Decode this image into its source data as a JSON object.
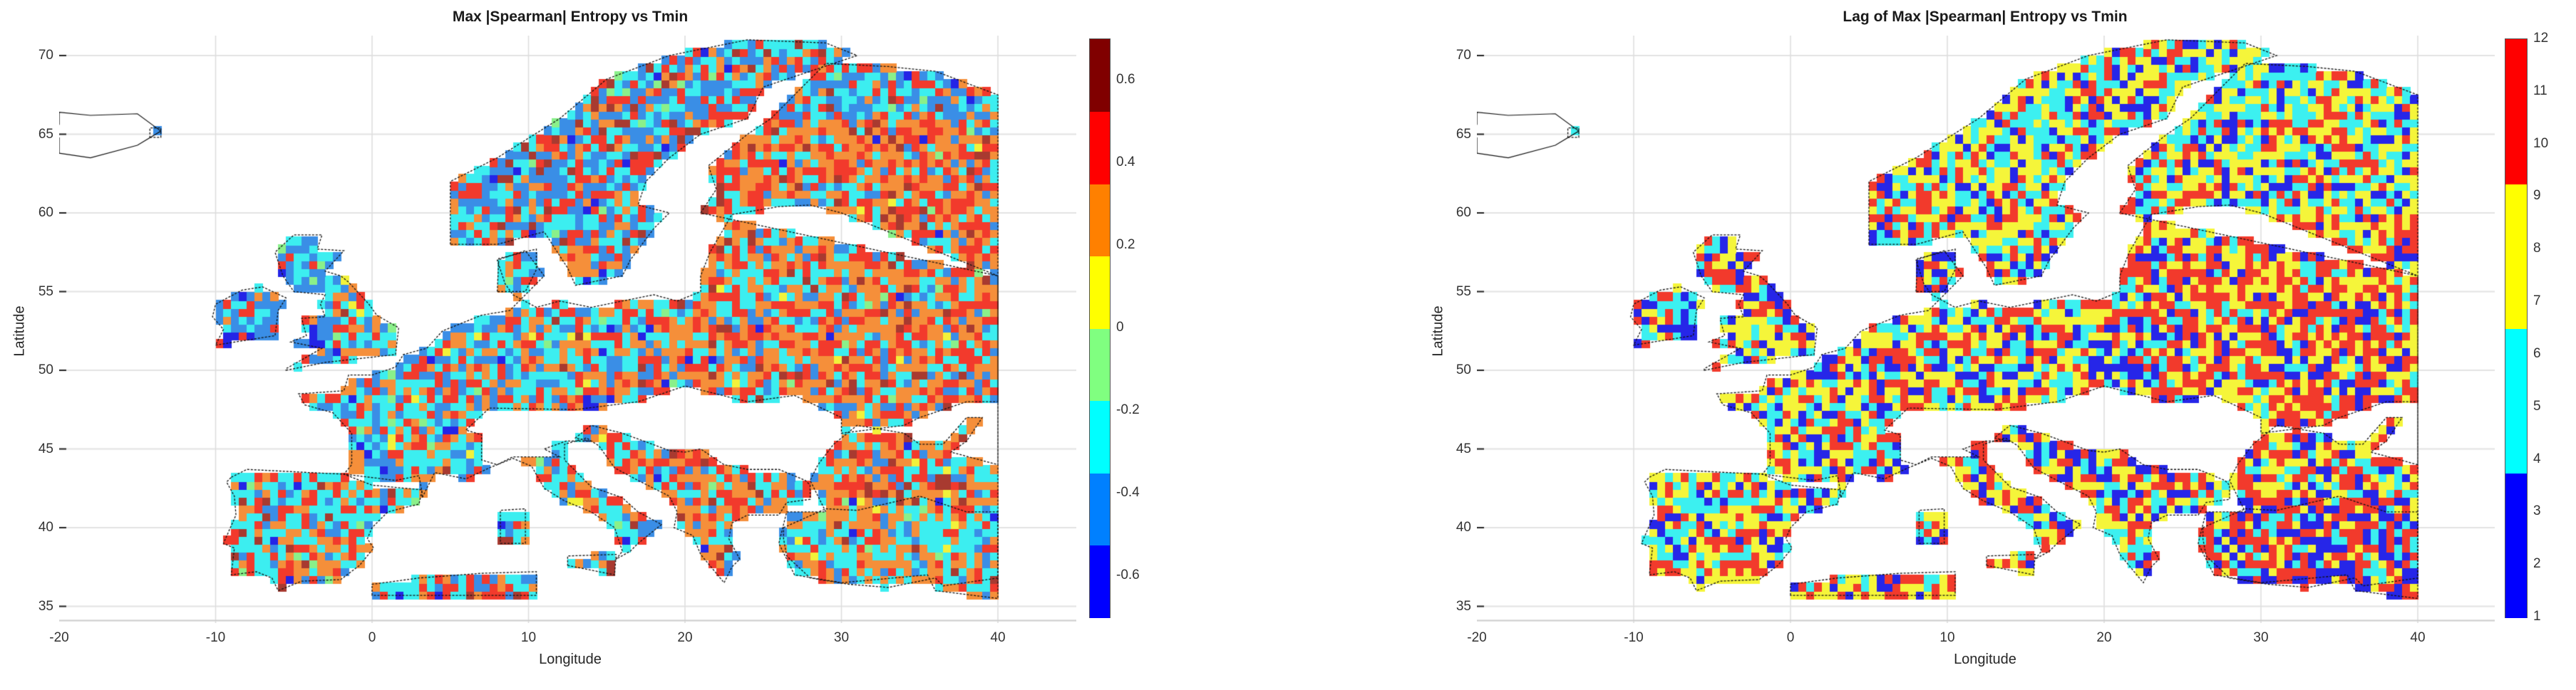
{
  "chart_data": [
    {
      "type": "heatmap",
      "title": "Max |Spearman| Entropy vs Tmin",
      "xlabel": "Longitude",
      "ylabel": "Latitude",
      "xlim": [
        -20,
        45
      ],
      "ylim": [
        34,
        71
      ],
      "xticks": [
        -20,
        -10,
        0,
        10,
        20,
        30,
        40
      ],
      "yticks": [
        35,
        40,
        45,
        50,
        55,
        60,
        65,
        70
      ],
      "grid": true,
      "cell_size_deg": 0.5,
      "colorbar": {
        "position": "right",
        "range": [
          -0.7,
          0.7
        ],
        "ticks": [
          -0.6,
          -0.4,
          -0.2,
          0,
          0.2,
          0.4,
          0.6
        ],
        "bins": [
          {
            "from": -0.7,
            "to": -0.525,
            "color": "#0000ff"
          },
          {
            "from": -0.525,
            "to": -0.35,
            "color": "#0080ff"
          },
          {
            "from": -0.35,
            "to": -0.175,
            "color": "#00ffff"
          },
          {
            "from": -0.175,
            "to": 0.0,
            "color": "#80ff80"
          },
          {
            "from": 0.0,
            "to": 0.175,
            "color": "#ffff00"
          },
          {
            "from": 0.175,
            "to": 0.35,
            "color": "#ff8000"
          },
          {
            "from": 0.35,
            "to": 0.525,
            "color": "#ff0000"
          },
          {
            "from": 0.525,
            "to": 0.7,
            "color": "#800000"
          }
        ]
      },
      "rendered_colors": [
        "#2424e6",
        "#3a8ee6",
        "#3ceef0",
        "#8af08a",
        "#f2f23a",
        "#f58f3a",
        "#f23a2c",
        "#a83a30"
      ],
      "regional_patterns": [
        {
          "region": "Scandinavia (Norway/Sweden)",
          "dominant": [
            "blue",
            "cyan",
            "red",
            "orange"
          ],
          "note": "mixed; central Sweden mostly blue/cyan"
        },
        {
          "region": "Finland / NW Russia",
          "dominant": [
            "orange",
            "red"
          ],
          "note": "predominantly positive"
        },
        {
          "region": "British Isles",
          "dominant": [
            "blue",
            "cyan"
          ],
          "note": "mostly negative with some red/orange"
        },
        {
          "region": "France / Benelux / Germany",
          "dominant": [
            "cyan",
            "blue"
          ],
          "note": "mixed with scattered red/orange"
        },
        {
          "region": "Eastern Europe / Ukraine",
          "dominant": [
            "orange",
            "red"
          ],
          "note": "predominantly positive"
        },
        {
          "region": "Iberia",
          "dominant": [
            "cyan",
            "orange",
            "red"
          ],
          "note": "north cyan, south mixed"
        },
        {
          "region": "Turkey",
          "dominant": [
            "cyan",
            "orange"
          ],
          "note": "north-east cyan, south orange"
        },
        {
          "region": "North Africa strip (0-10E, ~36N)",
          "dominant": [
            "red",
            "blue",
            "dark red"
          ],
          "note": ""
        }
      ]
    },
    {
      "type": "heatmap",
      "title": "Lag of Max |Spearman| Entropy vs Tmin",
      "xlabel": "Longitude",
      "ylabel": "Latitude",
      "xlim": [
        -20,
        45
      ],
      "ylim": [
        34,
        71
      ],
      "xticks": [
        -20,
        -10,
        0,
        10,
        20,
        30,
        40
      ],
      "yticks": [
        35,
        40,
        45,
        50,
        55,
        60,
        65,
        70
      ],
      "grid": true,
      "cell_size_deg": 0.5,
      "colorbar": {
        "position": "right",
        "range": [
          1,
          12
        ],
        "ticks": [
          1,
          2,
          3,
          4,
          5,
          6,
          7,
          8,
          9,
          10,
          11,
          12
        ],
        "bins": [
          {
            "from": 1,
            "to": 3.75,
            "color": "#0000ff"
          },
          {
            "from": 3.75,
            "to": 6.5,
            "color": "#00ffff"
          },
          {
            "from": 6.5,
            "to": 9.25,
            "color": "#ffff00"
          },
          {
            "from": 9.25,
            "to": 12,
            "color": "#ff0000"
          }
        ]
      },
      "rendered_colors": [
        "#2626e8",
        "#3cf0f0",
        "#f5f53a",
        "#f23a2c"
      ],
      "regional_patterns": [
        {
          "region": "Scandinavia",
          "dominant": [
            "yellow",
            "cyan"
          ],
          "note": "mixed with red and blue"
        },
        {
          "region": "Eastern Europe / Russia",
          "dominant": [
            "red",
            "yellow"
          ],
          "note": "predominantly high lags"
        },
        {
          "region": "Western/Central Europe",
          "dominant": [
            "yellow",
            "red",
            "cyan",
            "blue"
          ],
          "note": "highly mixed"
        },
        {
          "region": "Iberia",
          "dominant": [
            "red",
            "yellow",
            "blue"
          ],
          "note": "mixed"
        },
        {
          "region": "Turkey",
          "dominant": [
            "red",
            "blue"
          ],
          "note": "large blue/red patches"
        },
        {
          "region": "North Africa strip",
          "dominant": [
            "yellow",
            "red"
          ],
          "note": ""
        }
      ]
    }
  ],
  "panels": [
    {
      "title": "Max |Spearman| Entropy vs Tmin",
      "xlabel": "Longitude",
      "ylabel": "Latitude",
      "xticks": [
        "-20",
        "-10",
        "0",
        "10",
        "20",
        "30",
        "40"
      ],
      "yticks": [
        "70",
        "65",
        "60",
        "55",
        "50",
        "45",
        "40",
        "35"
      ],
      "cbticks": [
        "0.6",
        "0.4",
        "0.2",
        "0",
        "-0.2",
        "-0.4",
        "-0.6"
      ]
    },
    {
      "title": "Lag of Max |Spearman| Entropy vs Tmin",
      "xlabel": "Longitude",
      "ylabel": "Latitude",
      "xticks": [
        "-20",
        "-10",
        "0",
        "10",
        "20",
        "30",
        "40"
      ],
      "yticks": [
        "70",
        "65",
        "60",
        "55",
        "50",
        "45",
        "40",
        "35"
      ],
      "cbticks": [
        "12",
        "11",
        "10",
        "9",
        "8",
        "7",
        "6",
        "5",
        "4",
        "3",
        "2",
        "1"
      ]
    }
  ]
}
